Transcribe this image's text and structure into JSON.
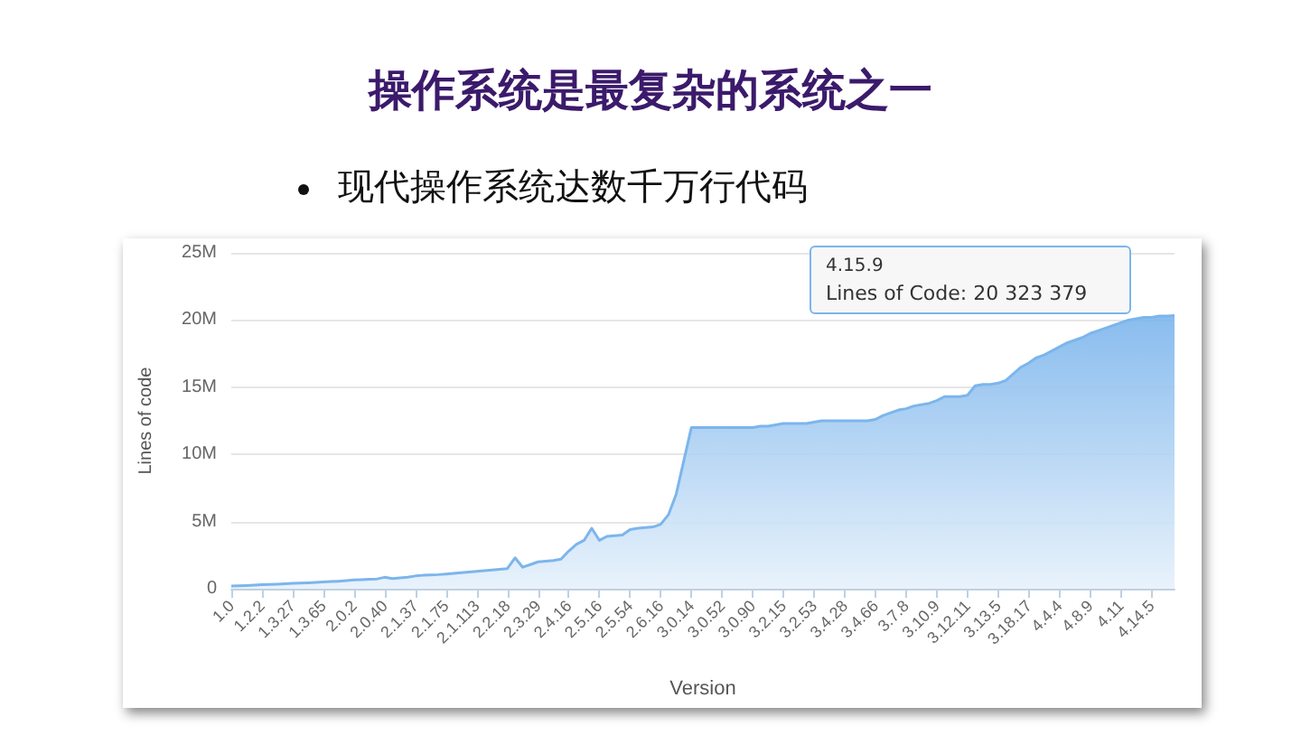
{
  "chart_data": {
    "type": "area",
    "title": "操作系统是最复杂的系统之一",
    "subtitle": "现代操作系统达数千万行代码",
    "xlabel": "Version",
    "ylabel": "Lines of code",
    "categories": [
      "1.0",
      null,
      null,
      null,
      "1.2.2",
      null,
      null,
      null,
      "1.3.27",
      null,
      null,
      null,
      "1.3.65",
      null,
      null,
      null,
      "2.0.2",
      null,
      null,
      null,
      "2.0.40",
      null,
      null,
      null,
      "2.1.37",
      null,
      null,
      null,
      "2.1.75",
      null,
      null,
      null,
      "2.1.113",
      null,
      null,
      null,
      "2.2.18",
      null,
      null,
      null,
      "2.3.29",
      null,
      null,
      null,
      "2.4.16",
      null,
      null,
      null,
      "2.5.16",
      null,
      null,
      null,
      "2.5.54",
      null,
      null,
      null,
      "2.6.16",
      null,
      null,
      null,
      "3.0.14",
      null,
      null,
      null,
      "3.0.52",
      null,
      null,
      null,
      "3.0.90",
      null,
      null,
      null,
      "3.2.15",
      null,
      null,
      null,
      "3.2.53",
      null,
      null,
      null,
      "3.4.28",
      null,
      null,
      null,
      "3.4.66",
      null,
      null,
      null,
      "3.7.8",
      null,
      null,
      null,
      "3.10.9",
      null,
      null,
      null,
      "3.12.11",
      null,
      null,
      null,
      "3.13.5",
      null,
      null,
      null,
      "3.18.17",
      null,
      null,
      null,
      "4.4.4",
      null,
      null,
      null,
      "4.8.9",
      null,
      null,
      null,
      "4.11",
      null,
      null,
      null,
      "4.14.5",
      null,
      null,
      null
    ],
    "series": [
      {
        "color": "#7cb5ec",
        "values": [
          200000,
          220000,
          240000,
          270000,
          300000,
          320000,
          340000,
          370000,
          400000,
          420000,
          440000,
          470000,
          500000,
          530000,
          560000,
          600000,
          650000,
          680000,
          700000,
          730000,
          850000,
          750000,
          800000,
          850000,
          950000,
          1000000,
          1020000,
          1050000,
          1100000,
          1150000,
          1200000,
          1250000,
          1300000,
          1350000,
          1400000,
          1450000,
          1500000,
          2300000,
          1600000,
          1800000,
          2000000,
          2050000,
          2100000,
          2200000,
          2800000,
          3300000,
          3600000,
          4500000,
          3600000,
          3900000,
          3950000,
          4000000,
          4400000,
          4500000,
          4550000,
          4600000,
          4800000,
          5500000,
          7000000,
          9500000,
          12000000,
          12000000,
          12000000,
          12000000,
          12000000,
          12000000,
          12000000,
          12000000,
          12000000,
          12100000,
          12100000,
          12200000,
          12300000,
          12300000,
          12300000,
          12300000,
          12400000,
          12500000,
          12500000,
          12500000,
          12500000,
          12500000,
          12500000,
          12500000,
          12600000,
          12900000,
          13100000,
          13300000,
          13400000,
          13600000,
          13700000,
          13800000,
          14000000,
          14300000,
          14300000,
          14300000,
          14400000,
          15100000,
          15200000,
          15200000,
          15300000,
          15500000,
          16000000,
          16500000,
          16800000,
          17200000,
          17400000,
          17700000,
          18000000,
          18300000,
          18500000,
          18700000,
          19000000,
          19200000,
          19400000,
          19600000,
          19800000,
          20000000,
          20100000,
          20200000,
          20200000,
          20300000,
          20300000,
          20323379
        ]
      }
    ],
    "ylim": [
      0,
      25000000
    ],
    "yticks": [
      0,
      {
        "value": 5000000,
        "label": "5M"
      },
      {
        "value": 10000000,
        "label": "10M"
      },
      {
        "value": 15000000,
        "label": "15M"
      },
      {
        "value": 20000000,
        "label": "20M"
      },
      {
        "value": 25000000,
        "label": "25M"
      }
    ],
    "grid": "y",
    "marker": "none",
    "annotations": [
      "4.15.9",
      "Lines of Code: 20 323 379"
    ]
  }
}
